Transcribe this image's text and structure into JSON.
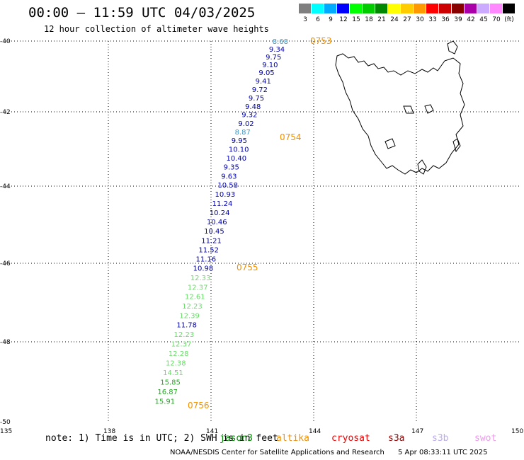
{
  "header": {
    "title": "00:00 – 11:59 UTC 04/03/2025",
    "subtitle": "12 hour collection of altimeter wave heights"
  },
  "color_scale": {
    "unit": "(ft)",
    "steps": [
      {
        "label": "3",
        "color": "#7f7f7f"
      },
      {
        "label": "6",
        "color": "#00ffff"
      },
      {
        "label": "9",
        "color": "#00aaff"
      },
      {
        "label": "12",
        "color": "#0000ff"
      },
      {
        "label": "15",
        "color": "#00ff00"
      },
      {
        "label": "18",
        "color": "#00cc00"
      },
      {
        "label": "21",
        "color": "#008800"
      },
      {
        "label": "24",
        "color": "#ffff00"
      },
      {
        "label": "27",
        "color": "#ffcc00"
      },
      {
        "label": "30",
        "color": "#ff9900"
      },
      {
        "label": "33",
        "color": "#ff0000"
      },
      {
        "label": "36",
        "color": "#cc0000"
      },
      {
        "label": "39",
        "color": "#880000"
      },
      {
        "label": "42",
        "color": "#aa00aa"
      },
      {
        "label": "45",
        "color": "#ccaaff"
      },
      {
        "label": "70",
        "color": "#ff88ff"
      },
      {
        "label": "",
        "color": "#000000"
      }
    ]
  },
  "axes": {
    "lat_labels": [
      "-40",
      "-42",
      "-44",
      "-46",
      "-48",
      "-50"
    ],
    "lon_labels": [
      "135",
      "138",
      "141",
      "144",
      "147",
      "150"
    ]
  },
  "passes": [
    "0753",
    "0754",
    "0755",
    "0756"
  ],
  "measurements": [
    {
      "v": "8.68",
      "lat": -40.0,
      "lon": 143.25,
      "c": "#3399cc"
    },
    {
      "v": "9.34",
      "lat": -40.22,
      "lon": 143.15,
      "c": "#0000aa"
    },
    {
      "v": "9.75",
      "lat": -40.44,
      "lon": 143.05,
      "c": "#0000aa"
    },
    {
      "v": "9.10",
      "lat": -40.66,
      "lon": 142.95,
      "c": "#0000aa"
    },
    {
      "v": "9.05",
      "lat": -40.88,
      "lon": 142.85,
      "c": "#0000aa"
    },
    {
      "v": "9.41",
      "lat": -41.12,
      "lon": 142.75,
      "c": "#0000aa"
    },
    {
      "v": "9.72",
      "lat": -41.36,
      "lon": 142.65,
      "c": "#0000aa"
    },
    {
      "v": "9.75",
      "lat": -41.6,
      "lon": 142.55,
      "c": "#0000aa"
    },
    {
      "v": "9.48",
      "lat": -41.84,
      "lon": 142.45,
      "c": "#0000aa"
    },
    {
      "v": "9.32",
      "lat": -42.07,
      "lon": 142.35,
      "c": "#0000aa"
    },
    {
      "v": "9.02",
      "lat": -42.3,
      "lon": 142.25,
      "c": "#0000aa"
    },
    {
      "v": "8.87",
      "lat": -42.53,
      "lon": 142.15,
      "c": "#3399cc"
    },
    {
      "v": "9.95",
      "lat": -42.76,
      "lon": 142.05,
      "c": "#0000aa"
    },
    {
      "v": "10.10",
      "lat": -43.0,
      "lon": 141.97,
      "c": "#0000aa"
    },
    {
      "v": "10.40",
      "lat": -43.24,
      "lon": 141.9,
      "c": "#0000aa"
    },
    {
      "v": "9.35",
      "lat": -43.48,
      "lon": 141.82,
      "c": "#0000aa"
    },
    {
      "v": "9.63",
      "lat": -43.72,
      "lon": 141.75,
      "c": "#0000aa"
    },
    {
      "v": "10.58",
      "lat": -43.96,
      "lon": 141.65,
      "c": "#0000aa"
    },
    {
      "v": "10.93",
      "lat": -44.2,
      "lon": 141.57,
      "c": "#0000aa"
    },
    {
      "v": "11.24",
      "lat": -44.44,
      "lon": 141.49,
      "c": "#0000aa"
    },
    {
      "v": "10.24",
      "lat": -44.68,
      "lon": 141.41,
      "c": "#0000aa"
    },
    {
      "v": "10.46",
      "lat": -44.92,
      "lon": 141.33,
      "c": "#0000aa"
    },
    {
      "v": "10.45",
      "lat": -45.16,
      "lon": 141.25,
      "c": "#0000aa"
    },
    {
      "v": "11.21",
      "lat": -45.4,
      "lon": 141.17,
      "c": "#0000aa"
    },
    {
      "v": "11.52",
      "lat": -45.64,
      "lon": 141.09,
      "c": "#0000aa"
    },
    {
      "v": "11.16",
      "lat": -45.88,
      "lon": 141.01,
      "c": "#0000aa"
    },
    {
      "v": "10.98",
      "lat": -46.12,
      "lon": 140.93,
      "c": "#0000aa"
    },
    {
      "v": "12.33",
      "lat": -46.36,
      "lon": 140.85,
      "c": "#66dd66"
    },
    {
      "v": "12.37",
      "lat": -46.6,
      "lon": 140.77,
      "c": "#66dd66"
    },
    {
      "v": "12.61",
      "lat": -46.84,
      "lon": 140.69,
      "c": "#66dd66"
    },
    {
      "v": "12.23",
      "lat": -47.08,
      "lon": 140.61,
      "c": "#66dd66"
    },
    {
      "v": "12.39",
      "lat": -47.32,
      "lon": 140.53,
      "c": "#66dd66"
    },
    {
      "v": "11.78",
      "lat": -47.56,
      "lon": 140.45,
      "c": "#0000aa"
    },
    {
      "v": "12.23",
      "lat": -47.8,
      "lon": 140.37,
      "c": "#66dd66"
    },
    {
      "v": "12.37",
      "lat": -48.04,
      "lon": 140.29,
      "c": "#66dd66"
    },
    {
      "v": "12.28",
      "lat": -48.28,
      "lon": 140.21,
      "c": "#66dd66"
    },
    {
      "v": "12.38",
      "lat": -48.52,
      "lon": 140.13,
      "c": "#66dd66"
    },
    {
      "v": "14.51",
      "lat": -48.76,
      "lon": 140.05,
      "c": "#66dd66"
    },
    {
      "v": "15.85",
      "lat": -49.0,
      "lon": 139.97,
      "c": "#22aa22"
    },
    {
      "v": "16.87",
      "lat": -49.24,
      "lon": 139.89,
      "c": "#22aa22"
    },
    {
      "v": "15.91",
      "lat": -49.48,
      "lon": 139.81,
      "c": "#22aa22"
    }
  ],
  "legend": {
    "note": "note: 1) Time is in UTC; 2) SWH is in feet",
    "satellites": [
      {
        "name": "jason3",
        "color": "#008800"
      },
      {
        "name": "altika",
        "color": "#f29000"
      },
      {
        "name": "cryosat",
        "color": "#ee0000"
      },
      {
        "name": "s3a",
        "color": "#990000"
      },
      {
        "name": "s3b",
        "color": "#bbaaee"
      },
      {
        "name": "swot",
        "color": "#ee99ee"
      }
    ]
  },
  "footer": {
    "credit": "NOAA/NESDIS Center for Satellite Applications and Research",
    "timestamp": "5 Apr 08:33:11 UTC 2025"
  }
}
